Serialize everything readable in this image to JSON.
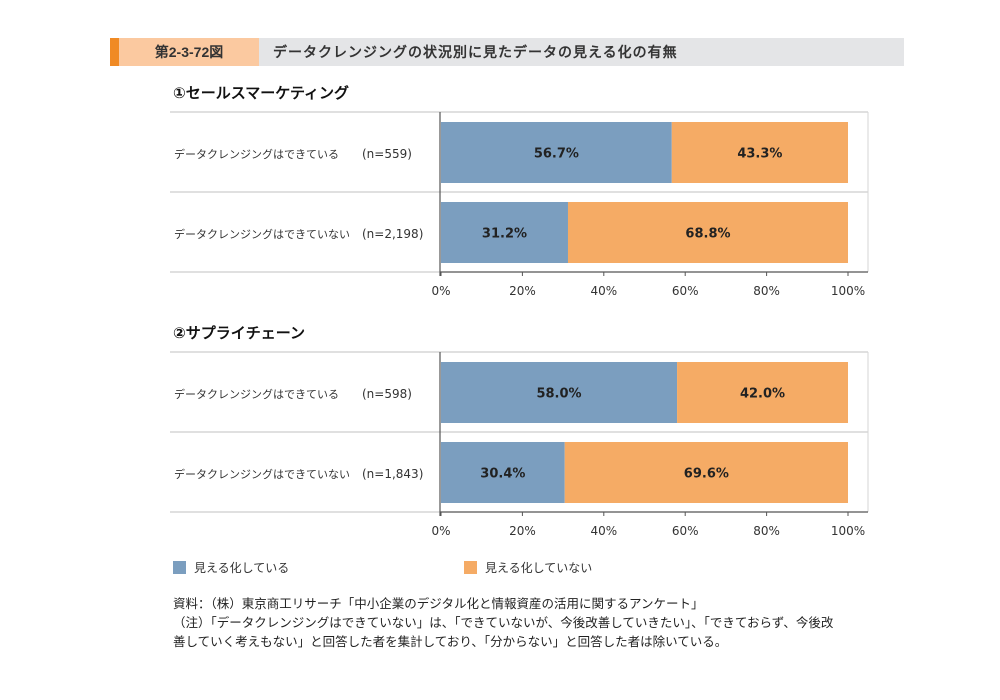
{
  "figure": {
    "number": "第2-3-72図",
    "title": "データクレンジングの状況別に見たデータの見える化の有無",
    "accent_color": "#f08a24",
    "number_bg_color": "#fbc9a0"
  },
  "legend": [
    {
      "label": "見える化している",
      "color": "#7b9ebf"
    },
    {
      "label": "見える化していない",
      "color": "#f5ab65"
    }
  ],
  "notes": {
    "source": "資料：（株）東京商工リサーチ「中小企業のデジタル化と情報資産の活用に関するアンケート」",
    "note_line1": "（注）「データクレンジングはできていない」は、「できていないが、今後改善していきたい」、「できておらず、今後改",
    "note_line2": "善していく考えもない」と回答した者を集計しており、「分からない」と回答した者は除いている。"
  },
  "chart_data": [
    {
      "type": "bar",
      "orientation": "horizontal",
      "stacked": true,
      "title": "①セールスマーケティング",
      "categories": [
        "データクレンジングはできている",
        "データクレンジングはできていない"
      ],
      "n_labels": [
        "(n=559)",
        "(n=2,198)"
      ],
      "series": [
        {
          "name": "見える化している",
          "values": [
            56.7,
            31.2
          ],
          "labels": [
            "56.7%",
            "31.2%"
          ]
        },
        {
          "name": "見える化していない",
          "values": [
            43.3,
            68.8
          ],
          "labels": [
            "43.3%",
            "68.8%"
          ]
        }
      ],
      "xlim": [
        0,
        100
      ],
      "xticks": [
        "0%",
        "20%",
        "40%",
        "60%",
        "80%",
        "100%"
      ],
      "xlabel": "",
      "ylabel": "",
      "legend": "bottom"
    },
    {
      "type": "bar",
      "orientation": "horizontal",
      "stacked": true,
      "title": "②サプライチェーン",
      "categories": [
        "データクレンジングはできている",
        "データクレンジングはできていない"
      ],
      "n_labels": [
        "(n=598)",
        "(n=1,843)"
      ],
      "series": [
        {
          "name": "見える化している",
          "values": [
            58.0,
            30.4
          ],
          "labels": [
            "58.0%",
            "30.4%"
          ]
        },
        {
          "name": "見える化していない",
          "values": [
            42.0,
            69.6
          ],
          "labels": [
            "42.0%",
            "69.6%"
          ]
        }
      ],
      "xlim": [
        0,
        100
      ],
      "xticks": [
        "0%",
        "20%",
        "40%",
        "60%",
        "80%",
        "100%"
      ],
      "xlabel": "",
      "ylabel": "",
      "legend": "bottom"
    }
  ]
}
